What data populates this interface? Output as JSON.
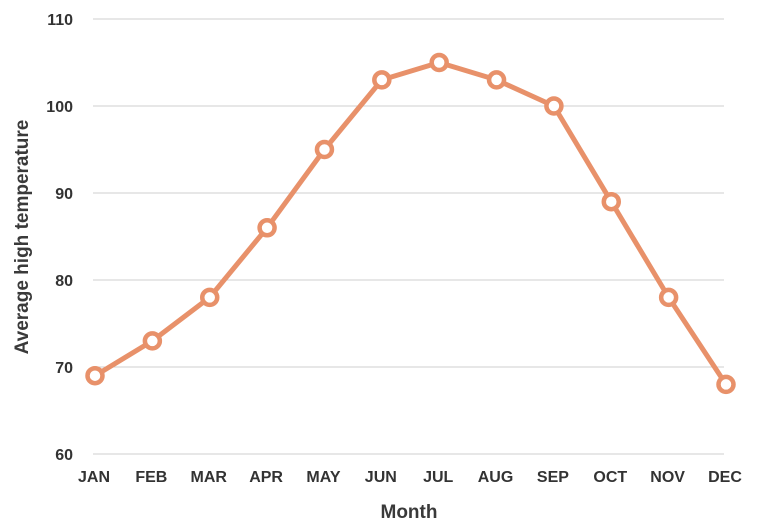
{
  "chart_data": {
    "type": "line",
    "title": "",
    "xlabel": "Month",
    "ylabel": "Average high temperature",
    "categories": [
      "JAN",
      "FEB",
      "MAR",
      "APR",
      "MAY",
      "JUN",
      "JUL",
      "AUG",
      "SEP",
      "OCT",
      "NOV",
      "DEC"
    ],
    "series": [
      {
        "values": [
          69,
          73,
          78,
          86,
          95,
          103,
          105,
          103,
          100,
          89,
          78,
          68
        ],
        "color": "#e8916a"
      }
    ],
    "ylim": [
      60,
      110
    ],
    "yticks": [
      60,
      70,
      80,
      90,
      100,
      110
    ],
    "grid": true,
    "legend": "none"
  }
}
